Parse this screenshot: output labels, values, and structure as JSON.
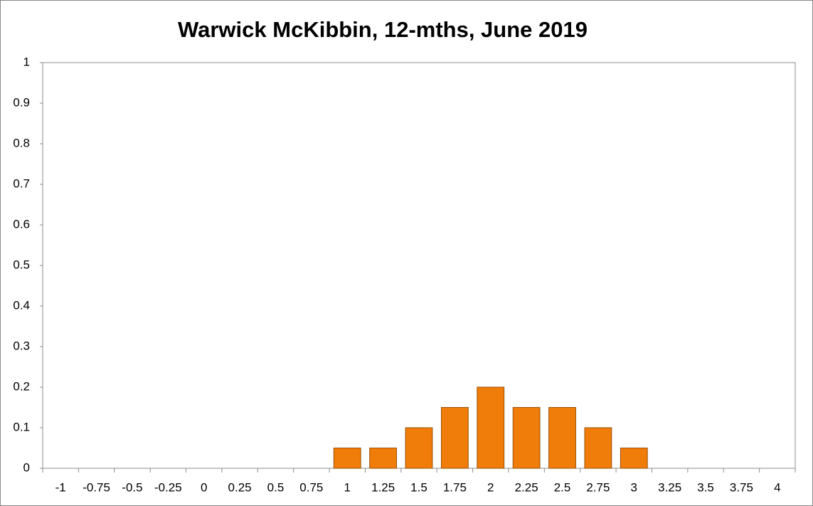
{
  "chart_data": {
    "type": "bar",
    "title": "Warwick McKibbin, 12-mths, June 2019",
    "categories": [
      "-1",
      "-0.75",
      "-0.5",
      "-0.25",
      "0",
      "0.25",
      "0.5",
      "0.75",
      "1",
      "1.25",
      "1.5",
      "1.75",
      "2",
      "2.25",
      "2.5",
      "2.75",
      "3",
      "3.25",
      "3.5",
      "3.75",
      "4"
    ],
    "values": [
      0,
      0,
      0,
      0,
      0,
      0,
      0,
      0,
      0.05,
      0.05,
      0.1,
      0.15,
      0.2,
      0.15,
      0.15,
      0.1,
      0.05,
      0,
      0,
      0,
      0
    ],
    "color": "#f07d0a",
    "ylim": [
      0,
      1
    ],
    "yticks": [
      0,
      0.1,
      0.2,
      0.3,
      0.4,
      0.5,
      0.6,
      0.7,
      0.8,
      0.9,
      1
    ],
    "grid": false
  }
}
